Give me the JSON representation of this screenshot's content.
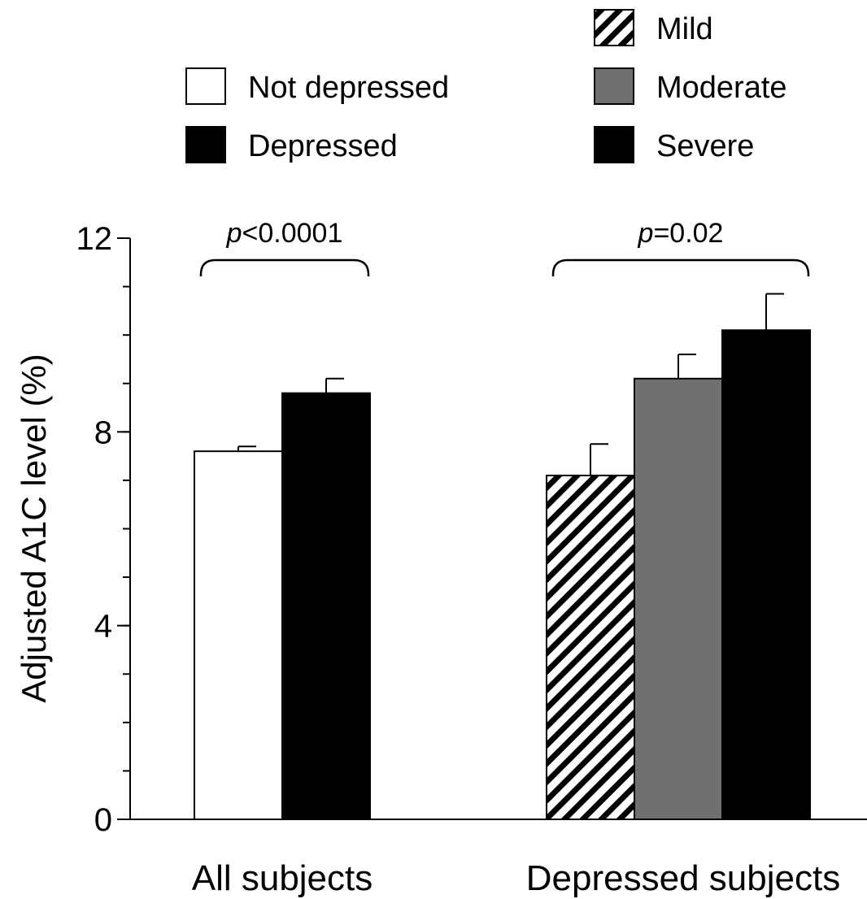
{
  "chart_data": {
    "type": "bar",
    "ylabel": "Adjusted A1C level (%)",
    "ylim": [
      0,
      12
    ],
    "yticks": [
      0,
      4,
      8,
      12
    ],
    "grid": false,
    "legend_position": "top",
    "legend_groups": [
      [
        {
          "label": "Not depressed",
          "fill": "white"
        },
        {
          "label": "Depressed",
          "fill": "black"
        }
      ],
      [
        {
          "label": "Mild",
          "fill": "hatch"
        },
        {
          "label": "Moderate",
          "fill": "gray"
        },
        {
          "label": "Severe",
          "fill": "black"
        }
      ]
    ],
    "groups": [
      {
        "label": "All subjects",
        "p_prefix": "p",
        "p_rest": "<0.0001",
        "bars": [
          {
            "series": "Not depressed",
            "value": 7.6,
            "error": 0.1,
            "fill": "white"
          },
          {
            "series": "Depressed",
            "value": 8.8,
            "error": 0.3,
            "fill": "black"
          }
        ]
      },
      {
        "label": "Depressed subjects",
        "p_prefix": "p",
        "p_rest": "=0.02",
        "bars": [
          {
            "series": "Mild",
            "value": 7.1,
            "error": 0.65,
            "fill": "hatch"
          },
          {
            "series": "Moderate",
            "value": 9.1,
            "error": 0.5,
            "fill": "gray"
          },
          {
            "series": "Severe",
            "value": 10.1,
            "error": 0.75,
            "fill": "black"
          }
        ]
      }
    ]
  },
  "colors": {
    "black": "#000000",
    "gray": "#707070",
    "white": "#ffffff"
  }
}
